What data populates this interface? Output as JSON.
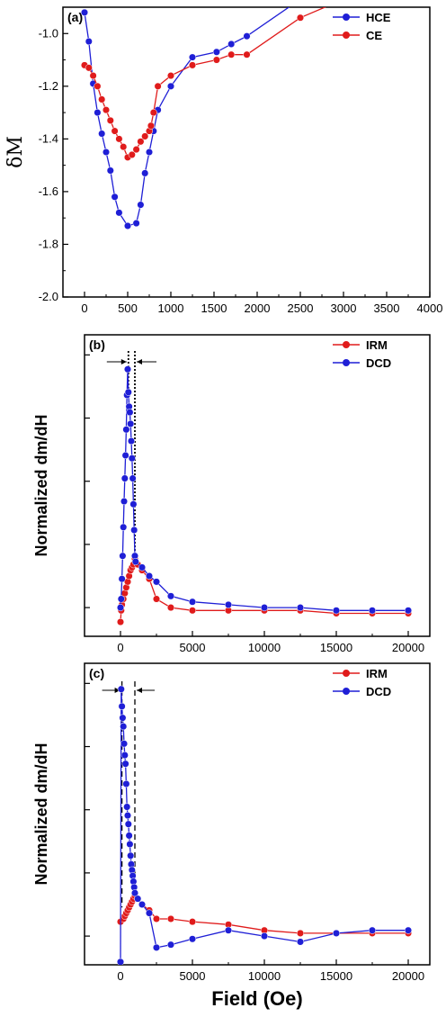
{
  "chart_data": [
    {
      "type": "line",
      "panel_label": "(a)",
      "xlabel": "",
      "ylabel": "δM",
      "xlim": [
        -250,
        4000
      ],
      "ylim": [
        -2.0,
        -0.9
      ],
      "xticks": [
        0,
        500,
        1000,
        1500,
        2000,
        2500,
        3000,
        3500,
        4000
      ],
      "yticks": [
        -2.0,
        -1.8,
        -1.6,
        -1.4,
        -1.2,
        -1.0
      ],
      "ytick_labels": [
        "-2.0",
        "-1.8",
        "-1.6",
        "-1.4",
        "-1.2",
        "-1.0"
      ],
      "legend_position": "top-right",
      "series": [
        {
          "name": "HCE",
          "color": "#1f1fd6",
          "x": [
            0,
            50,
            100,
            150,
            200,
            250,
            300,
            350,
            400,
            500,
            600,
            650,
            700,
            750,
            800,
            850,
            1000,
            1250,
            1530,
            1700,
            1880,
            2500
          ],
          "y": [
            -0.92,
            -1.03,
            -1.19,
            -1.3,
            -1.38,
            -1.45,
            -1.52,
            -1.62,
            -1.68,
            -1.73,
            -1.72,
            -1.65,
            -1.53,
            -1.45,
            -1.37,
            -1.29,
            -1.2,
            -1.09,
            -1.07,
            -1.04,
            -1.01,
            -0.87
          ]
        },
        {
          "name": "CE",
          "color": "#e01b1b",
          "x": [
            0,
            50,
            100,
            150,
            200,
            250,
            300,
            350,
            400,
            450,
            500,
            550,
            600,
            650,
            700,
            750,
            770,
            800,
            850,
            1000,
            1250,
            1530,
            1700,
            1880,
            2500,
            3000
          ],
          "y": [
            -1.12,
            -1.13,
            -1.16,
            -1.2,
            -1.25,
            -1.29,
            -1.33,
            -1.37,
            -1.4,
            -1.43,
            -1.47,
            -1.46,
            -1.44,
            -1.41,
            -1.39,
            -1.37,
            -1.35,
            -1.3,
            -1.2,
            -1.16,
            -1.12,
            -1.1,
            -1.08,
            -1.08,
            -0.94,
            -0.87
          ]
        }
      ]
    },
    {
      "type": "line",
      "panel_label": "(b)",
      "xlabel": "",
      "ylabel": "Normalized dm/dH",
      "xlim": [
        -2500,
        21500
      ],
      "ylim": [
        0,
        1.05
      ],
      "xticks": [
        0,
        5000,
        10000,
        15000,
        20000
      ],
      "ytick_values": [
        0.1,
        0.32,
        0.54,
        0.76,
        0.98
      ],
      "legend_position": "top-right",
      "series": [
        {
          "name": "IRM",
          "color": "#e01b1b",
          "x": [
            0,
            50,
            100,
            200,
            300,
            400,
            500,
            600,
            700,
            800,
            900,
            1000,
            1200,
            1500,
            2000,
            2500,
            3500,
            5000,
            7500,
            10000,
            12500,
            15000,
            17500,
            20000
          ],
          "y": [
            0.05,
            0.09,
            0.11,
            0.13,
            0.15,
            0.17,
            0.19,
            0.21,
            0.23,
            0.24,
            0.25,
            0.27,
            0.25,
            0.23,
            0.2,
            0.13,
            0.1,
            0.09,
            0.09,
            0.09,
            0.09,
            0.08,
            0.08,
            0.08
          ]
        },
        {
          "name": "DCD",
          "color": "#1f1fd6",
          "x": [
            0,
            50,
            100,
            150,
            200,
            250,
            300,
            350,
            400,
            450,
            500,
            550,
            600,
            650,
            700,
            750,
            800,
            850,
            900,
            950,
            1000,
            1050,
            1500,
            2000,
            2500,
            3500,
            5000,
            7500,
            10000,
            12500,
            15000,
            17500,
            20000
          ],
          "y": [
            0.1,
            0.13,
            0.2,
            0.28,
            0.38,
            0.47,
            0.55,
            0.63,
            0.72,
            0.84,
            0.93,
            0.85,
            0.8,
            0.78,
            0.74,
            0.68,
            0.62,
            0.55,
            0.46,
            0.37,
            0.28,
            0.26,
            0.24,
            0.21,
            0.19,
            0.14,
            0.12,
            0.11,
            0.1,
            0.1,
            0.09,
            0.09,
            0.09
          ]
        }
      ]
    },
    {
      "type": "line",
      "panel_label": "(c)",
      "xlabel": "Field (Oe)",
      "ylabel": "Normalized dm/dH",
      "xlim": [
        -2500,
        21500
      ],
      "ylim": [
        0,
        1.05
      ],
      "xticks": [
        0,
        5000,
        10000,
        15000,
        20000
      ],
      "ytick_values": [
        0.1,
        0.32,
        0.54,
        0.76,
        0.98
      ],
      "legend_position": "top-right",
      "series": [
        {
          "name": "IRM",
          "color": "#e01b1b",
          "x": [
            0,
            200,
            300,
            400,
            500,
            600,
            700,
            800,
            900,
            1000,
            1200,
            1500,
            2000,
            2500,
            3500,
            5000,
            7500,
            10000,
            12500,
            15000,
            17500,
            20000
          ],
          "y": [
            0.15,
            0.16,
            0.17,
            0.18,
            0.19,
            0.2,
            0.21,
            0.22,
            0.23,
            0.24,
            0.23,
            0.21,
            0.19,
            0.16,
            0.16,
            0.15,
            0.14,
            0.12,
            0.11,
            0.11,
            0.11,
            0.11
          ]
        },
        {
          "name": "DCD",
          "color": "#1f1fd6",
          "x": [
            0,
            50,
            100,
            150,
            200,
            250,
            300,
            350,
            400,
            450,
            500,
            550,
            600,
            650,
            700,
            750,
            800,
            850,
            900,
            950,
            1000,
            1200,
            1500,
            2000,
            2500,
            3500,
            5000,
            7500,
            10000,
            12500,
            15000,
            17500,
            20000
          ],
          "y": [
            0.01,
            0.96,
            0.9,
            0.86,
            0.83,
            0.77,
            0.73,
            0.7,
            0.63,
            0.55,
            0.52,
            0.49,
            0.45,
            0.42,
            0.38,
            0.35,
            0.33,
            0.31,
            0.29,
            0.27,
            0.25,
            0.23,
            0.21,
            0.18,
            0.06,
            0.07,
            0.09,
            0.12,
            0.1,
            0.08,
            0.11,
            0.12,
            0.12
          ]
        }
      ]
    }
  ]
}
